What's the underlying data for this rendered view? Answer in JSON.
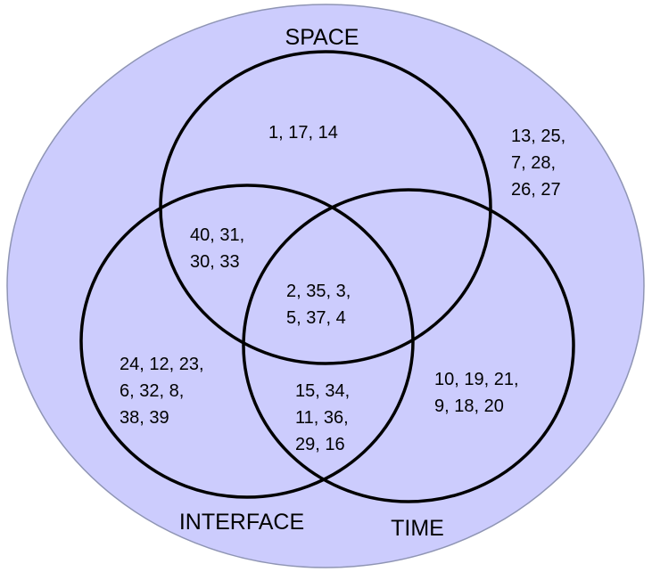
{
  "colors": {
    "universe_fill": "#ccccfd",
    "universe_stroke": "#8f95b4",
    "circle_stroke": "#000000",
    "text": "#000000"
  },
  "sets": {
    "space": {
      "label": "SPACE"
    },
    "interface": {
      "label": "INTERFACE"
    },
    "time": {
      "label": "TIME"
    }
  },
  "regions": {
    "space_only": {
      "lines": [
        "1, 17, 14"
      ]
    },
    "outside_all": {
      "lines": [
        "13, 25,",
        "7, 28,",
        "26, 27"
      ]
    },
    "space_interface": {
      "lines": [
        "40, 31,",
        "30, 33"
      ]
    },
    "all_three": {
      "lines": [
        "2, 35, 3,",
        "5, 37, 4"
      ]
    },
    "interface_only": {
      "lines": [
        "24, 12, 23,",
        "6, 32, 8,",
        "38, 39"
      ]
    },
    "interface_time": {
      "lines": [
        "15, 34,",
        "11, 36,",
        "29, 16"
      ]
    },
    "time_only": {
      "lines": [
        "10, 19, 21,",
        "9, 18, 20"
      ]
    }
  }
}
